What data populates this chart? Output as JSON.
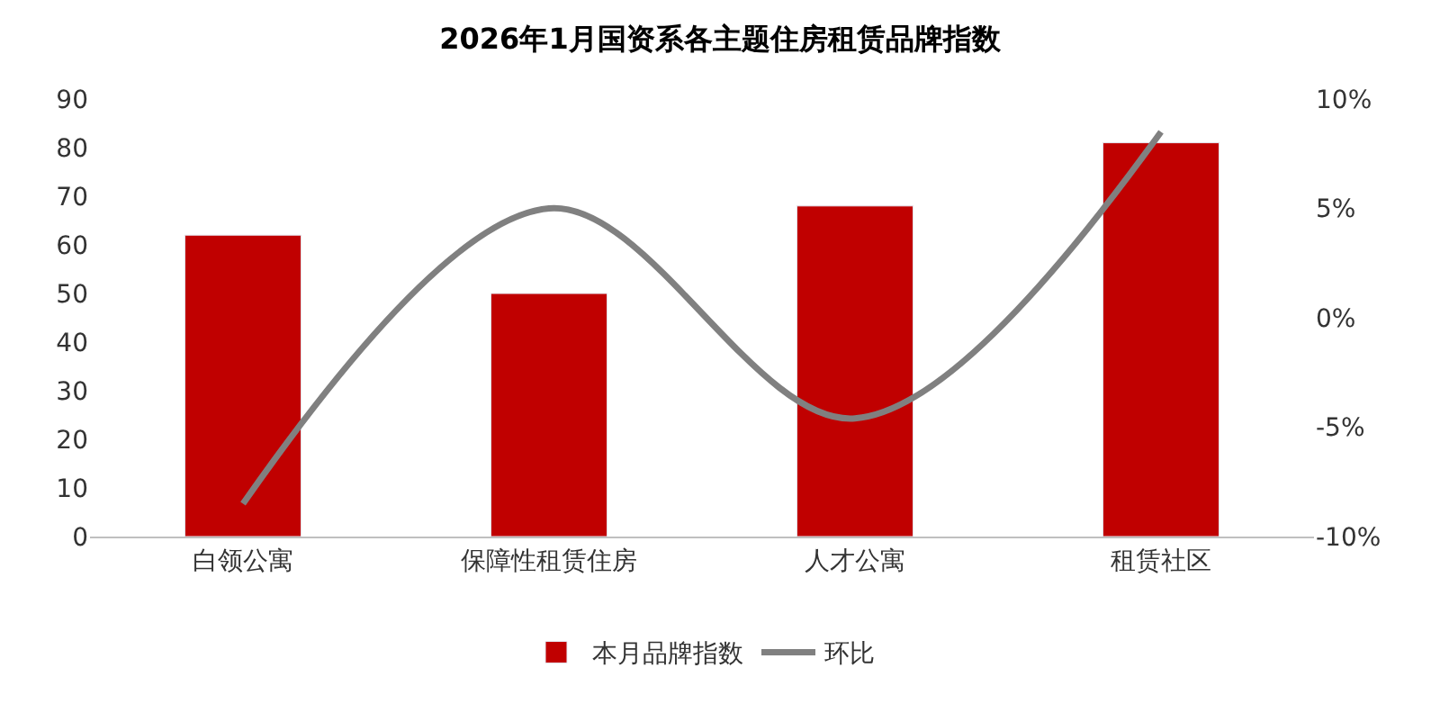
{
  "chart_data": {
    "type": "bar",
    "title": "2026年1月国资系各主题住房租赁品牌指数",
    "categories": [
      "白领公寓",
      "保障性租赁住房",
      "人才公寓",
      "租赁社区"
    ],
    "series": [
      {
        "name": "本月品牌指数",
        "color": "#c00000",
        "values": [
          62,
          50,
          68,
          81
        ]
      },
      {
        "name": "环比",
        "type": "line",
        "axis": "y2",
        "color": "#808080",
        "marker": "none",
        "line_style": "solid",
        "values": [
          -8.5,
          5.0,
          -4.6,
          8.5
        ]
      }
    ],
    "ylim": [
      0,
      90
    ],
    "yticks": [
      0,
      10,
      20,
      30,
      40,
      50,
      60,
      70,
      80,
      90
    ],
    "y2lim": [
      -10,
      10
    ],
    "y2ticks": [
      {
        "value": -10,
        "label": "-10%"
      },
      {
        "value": -5,
        "label": "-5%"
      },
      {
        "value": 0,
        "label": "0%"
      },
      {
        "value": 5,
        "label": "5%"
      },
      {
        "value": 10,
        "label": "10%"
      }
    ],
    "legend": "bottom"
  }
}
